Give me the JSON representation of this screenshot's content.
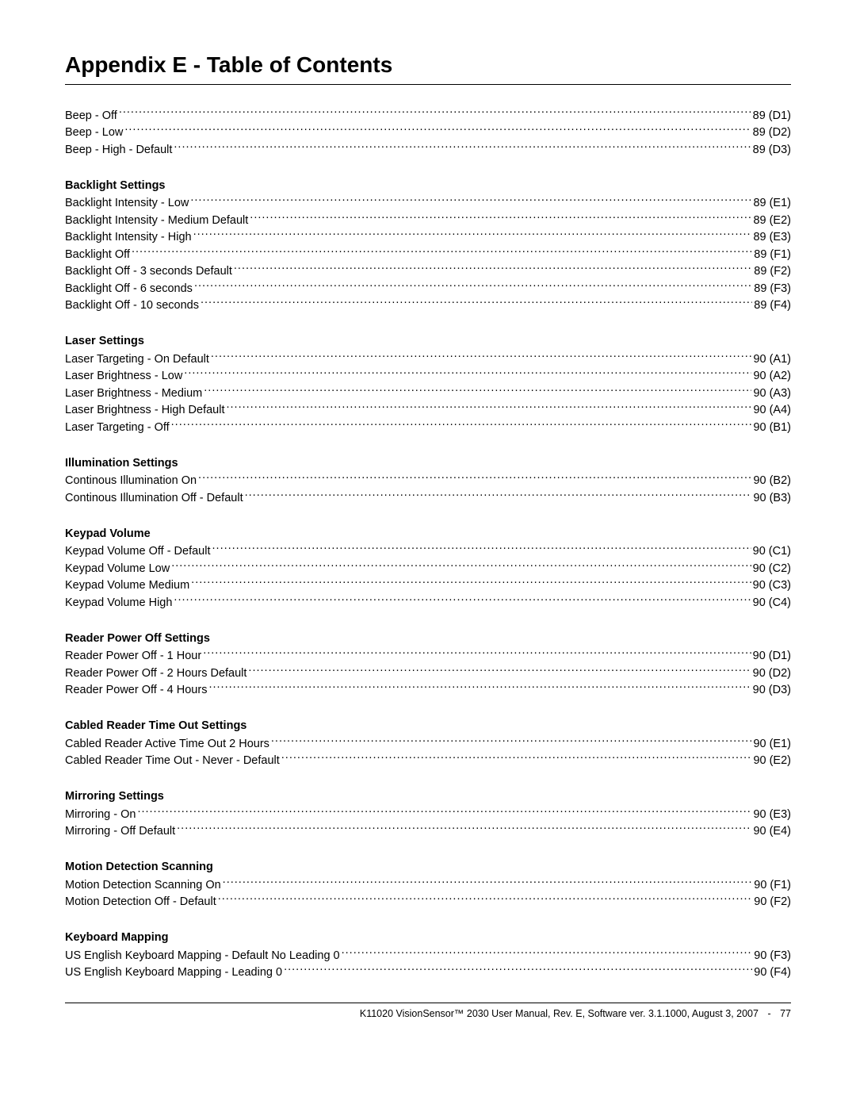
{
  "title": "Appendix E - Table of Contents",
  "sections": [
    {
      "header": null,
      "items": [
        {
          "label": "Beep - Off",
          "page": "89 (D1)"
        },
        {
          "label": "Beep - Low",
          "page": "89 (D2)"
        },
        {
          "label": "Beep - High - Default",
          "page": "89 (D3)"
        }
      ]
    },
    {
      "header": "Backlight Settings",
      "items": [
        {
          "label": "Backlight Intensity - Low",
          "page": "89 (E1)"
        },
        {
          "label": "Backlight Intensity - Medium Default",
          "page": "89 (E2)"
        },
        {
          "label": "Backlight Intensity - High",
          "page": "89 (E3)"
        },
        {
          "label": "Backlight Off",
          "page": "89 (F1)"
        },
        {
          "label": "Backlight Off - 3 seconds Default",
          "page": "89 (F2)"
        },
        {
          "label": "Backlight Off - 6 seconds",
          "page": "89 (F3)"
        },
        {
          "label": "Backlight Off - 10 seconds",
          "page": "89 (F4)"
        }
      ]
    },
    {
      "header": "Laser Settings",
      "items": [
        {
          "label": "Laser Targeting - On Default",
          "page": "90 (A1)"
        },
        {
          "label": "Laser Brightness - Low",
          "page": "90 (A2)"
        },
        {
          "label": "Laser Brightness - Medium",
          "page": "90 (A3)"
        },
        {
          "label": "Laser Brightness - High Default",
          "page": "90 (A4)"
        },
        {
          "label": "Laser Targeting - Off",
          "page": "90 (B1)"
        }
      ]
    },
    {
      "header": "Illumination Settings",
      "items": [
        {
          "label": "Continous Illumination On",
          "page": "90 (B2)"
        },
        {
          "label": "Continous Illumination Off - Default",
          "page": "90 (B3)"
        }
      ]
    },
    {
      "header": "Keypad Volume",
      "items": [
        {
          "label": "Keypad Volume Off - Default",
          "page": "90 (C1)"
        },
        {
          "label": "Keypad Volume Low",
          "page": "90 (C2)"
        },
        {
          "label": "Keypad Volume Medium",
          "page": "90 (C3)"
        },
        {
          "label": "Keypad Volume High",
          "page": "90 (C4)"
        }
      ]
    },
    {
      "header": "Reader Power Off Settings",
      "items": [
        {
          "label": "Reader Power Off - 1 Hour",
          "page": "90 (D1)"
        },
        {
          "label": "Reader Power Off - 2 Hours Default",
          "page": "90 (D2)"
        },
        {
          "label": "Reader Power Off - 4 Hours",
          "page": "90 (D3)"
        }
      ]
    },
    {
      "header": "Cabled Reader Time Out Settings",
      "items": [
        {
          "label": "Cabled Reader Active Time Out 2 Hours",
          "page": "90 (E1)"
        },
        {
          "label": "Cabled Reader Time Out - Never - Default",
          "page": "90 (E2)"
        }
      ]
    },
    {
      "header": "Mirroring Settings",
      "items": [
        {
          "label": "Mirroring - On",
          "page": "90 (E3)"
        },
        {
          "label": "Mirroring - Off Default",
          "page": "90 (E4)"
        }
      ]
    },
    {
      "header": "Motion Detection Scanning",
      "items": [
        {
          "label": "Motion Detection Scanning On",
          "page": "90 (F1)"
        },
        {
          "label": "Motion Detection Off - Default",
          "page": "90 (F2)"
        }
      ]
    },
    {
      "header": "Keyboard Mapping",
      "items": [
        {
          "label": "US English Keyboard Mapping - Default No Leading 0",
          "page": "90 (F3)"
        },
        {
          "label": "US English Keyboard Mapping  -  Leading 0",
          "page": "90 (F4)"
        }
      ]
    }
  ],
  "footer": {
    "text": "K11020 VisionSensor™ 2030 User Manual, Rev. E, Software ver. 3.1.1000, August 3, 2007",
    "page_number": "77"
  }
}
